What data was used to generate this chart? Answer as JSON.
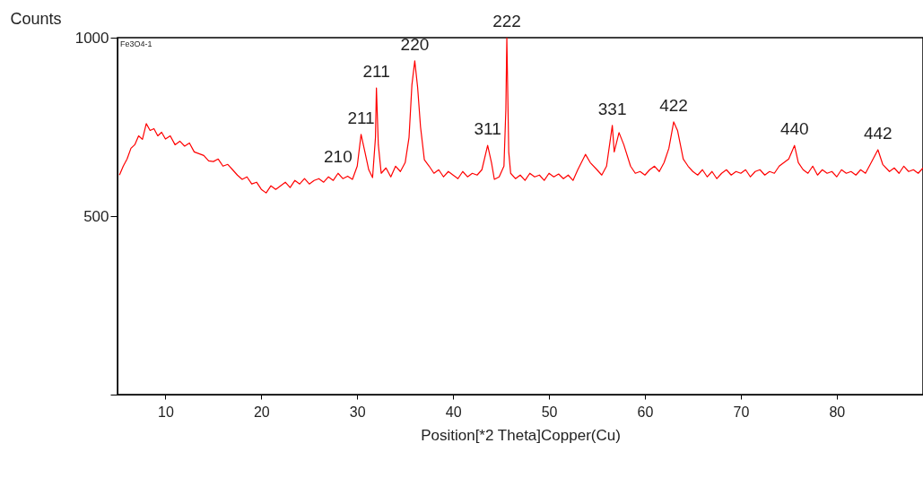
{
  "chart_data": {
    "type": "line",
    "xlabel": "Position[*2 Theta]Copper(Cu)",
    "ylabel": "Counts",
    "xlim": [
      5,
      89
    ],
    "xticks": [
      10,
      20,
      30,
      40,
      50,
      60,
      70,
      80
    ],
    "ylim": [
      0,
      1000
    ],
    "yticks": [
      {
        "value": 0,
        "label": null
      },
      500,
      1000
    ],
    "grid": false,
    "marker": "none",
    "line_style": "solid",
    "x": [
      5.2,
      5.6,
      6,
      6.4,
      6.8,
      7.2,
      7.6,
      8,
      8.4,
      8.8,
      9.2,
      9.6,
      10,
      10.5,
      11,
      11.5,
      12,
      12.5,
      13,
      13.5,
      14,
      14.5,
      15,
      15.5,
      16,
      16.5,
      17,
      17.5,
      18,
      18.5,
      19,
      19.5,
      20,
      20.5,
      21,
      21.5,
      22,
      22.5,
      23,
      23.5,
      24,
      24.5,
      25,
      25.5,
      26,
      26.5,
      27,
      27.5,
      28,
      28.5,
      29,
      29.5,
      30,
      30.4,
      30.8,
      31.2,
      31.6,
      31.9,
      32,
      32.2,
      32.5,
      33,
      33.5,
      34,
      34.5,
      35,
      35.4,
      35.7,
      36,
      36.3,
      36.6,
      37,
      37.5,
      38,
      38.5,
      39,
      39.5,
      40,
      40.5,
      41,
      41.5,
      42,
      42.5,
      43,
      43.6,
      44,
      44.3,
      44.8,
      45.3,
      45.5,
      45.6,
      45.8,
      46,
      46.5,
      47,
      47.5,
      48,
      48.5,
      49,
      49.5,
      50,
      50.5,
      51,
      51.5,
      52,
      52.5,
      53,
      53.8,
      54.3,
      55,
      55.5,
      56,
      56.6,
      56.8,
      57.3,
      57.8,
      58.5,
      59,
      59.5,
      60,
      60.5,
      61,
      61.5,
      62,
      62.5,
      63,
      63.4,
      64,
      64.5,
      65,
      65.5,
      66,
      66.5,
      67,
      67.5,
      68,
      68.5,
      69,
      69.5,
      70,
      70.5,
      71,
      71.5,
      72,
      72.5,
      73,
      73.5,
      74,
      74.5,
      75,
      75.6,
      76,
      76.5,
      77,
      77.5,
      78,
      78.5,
      79,
      79.5,
      80,
      80.5,
      81,
      81.5,
      82,
      82.5,
      83,
      83.5,
      84.3,
      84.8,
      85.5,
      86,
      86.5,
      87,
      87.5,
      88,
      88.5,
      89
    ],
    "series": [
      {
        "color": "#ff0000",
        "values": [
          615,
          640,
          660,
          690,
          700,
          725,
          715,
          759,
          740,
          745,
          725,
          735,
          716,
          725,
          700,
          710,
          696,
          705,
          680,
          675,
          670,
          655,
          653,
          660,
          640,
          645,
          630,
          615,
          603,
          610,
          590,
          595,
          575,
          565,
          585,
          575,
          585,
          595,
          580,
          600,
          590,
          605,
          590,
          600,
          605,
          595,
          610,
          600,
          620,
          605,
          612,
          603,
          640,
          729,
          680,
          630,
          608,
          720,
          859,
          700,
          620,
          635,
          610,
          640,
          625,
          650,
          720,
          867,
          935,
          860,
          750,
          658,
          640,
          620,
          630,
          610,
          625,
          615,
          605,
          625,
          610,
          620,
          615,
          630,
          698,
          650,
          603,
          610,
          640,
          800,
          1000,
          680,
          620,
          605,
          615,
          600,
          620,
          610,
          615,
          600,
          620,
          610,
          618,
          605,
          615,
          600,
          630,
          673,
          650,
          630,
          615,
          640,
          754,
          680,
          734,
          700,
          640,
          620,
          625,
          615,
          630,
          640,
          625,
          650,
          690,
          764,
          740,
          660,
          640,
          625,
          615,
          630,
          610,
          625,
          605,
          620,
          630,
          615,
          625,
          620,
          630,
          610,
          625,
          630,
          615,
          625,
          620,
          640,
          650,
          660,
          698,
          650,
          630,
          620,
          640,
          615,
          630,
          620,
          625,
          610,
          630,
          620,
          625,
          615,
          630,
          620,
          645,
          686,
          645,
          625,
          635,
          620,
          640,
          625,
          630,
          620,
          635
        ]
      }
    ],
    "annotations": [
      "Fe3O4-1",
      {
        "text": "210",
        "x": 28,
        "y": 620
      },
      {
        "text": "211",
        "x": 30.4,
        "y": 729
      },
      {
        "text": "211",
        "x": 32,
        "y": 859
      },
      {
        "text": "220",
        "x": 36,
        "y": 935
      },
      {
        "text": "311",
        "x": 43.6,
        "y": 698
      },
      {
        "text": "222",
        "x": 45.6,
        "y": 1000
      },
      {
        "text": "331",
        "x": 56.6,
        "y": 754
      },
      {
        "text": "422",
        "x": 63,
        "y": 764
      },
      {
        "text": "440",
        "x": 75.6,
        "y": 698
      },
      {
        "text": "442",
        "x": 84.3,
        "y": 686
      }
    ]
  }
}
